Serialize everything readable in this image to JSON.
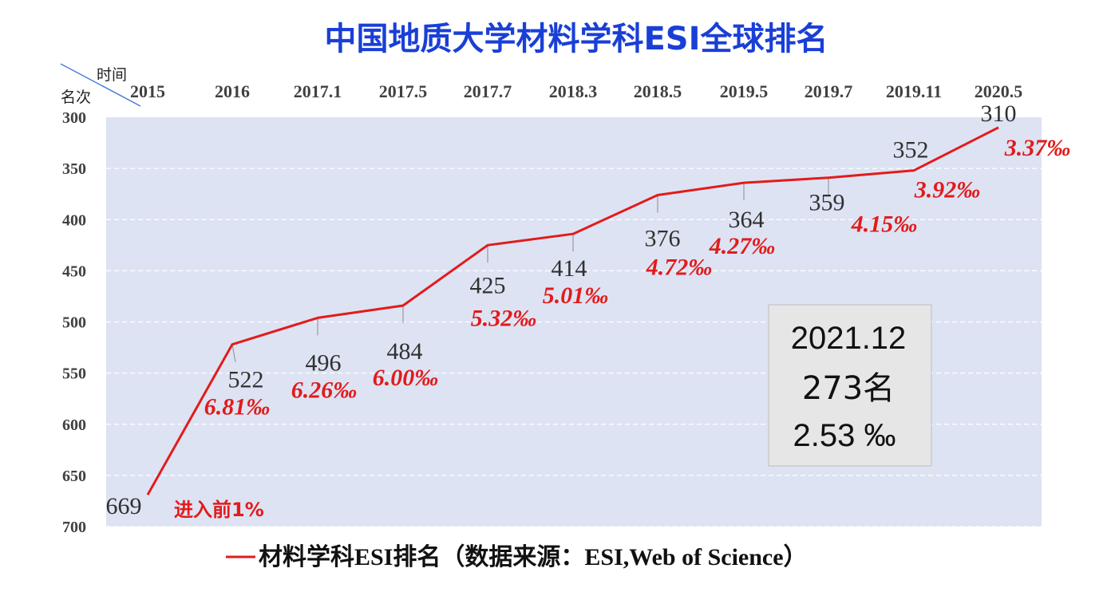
{
  "chart_data": {
    "type": "line",
    "title": "中国地质大学材料学科ESI全球排名",
    "xlabel": "时间",
    "ylabel": "名次",
    "categories": [
      "2015",
      "2016",
      "2017.1",
      "2017.5",
      "2017.7",
      "2018.3",
      "2018.5",
      "2019.5",
      "2019.7",
      "2019.11",
      "2020.5"
    ],
    "series": [
      {
        "name": "材料学科ESI排名（数据来源：ESI,Web of Science）",
        "values": [
          669,
          522,
          496,
          484,
          425,
          414,
          376,
          364,
          359,
          352,
          310
        ],
        "color": "#e21b1b"
      }
    ],
    "rank_labels": [
      "669",
      "522",
      "496",
      "484",
      "425",
      "414",
      "376",
      "364",
      "359",
      "352",
      "310"
    ],
    "percent_labels": [
      "",
      "6.81‰",
      "6.26‰",
      "6.00‰",
      "5.32‰",
      "5.01‰",
      "4.72‰",
      "4.27‰",
      "4.15‰",
      "3.92‰",
      "3.37‰"
    ],
    "first_point_note": "进入前1%",
    "ylim": [
      700,
      300
    ],
    "y_inverted": true,
    "yticks": [
      "300",
      "350",
      "400",
      "450",
      "500",
      "550",
      "600",
      "650",
      "700"
    ],
    "grid": true,
    "plot_background": "#dde3f3",
    "callout": {
      "line1": "2021.12",
      "line2": "273名",
      "line3": "2.53 ‰"
    }
  }
}
